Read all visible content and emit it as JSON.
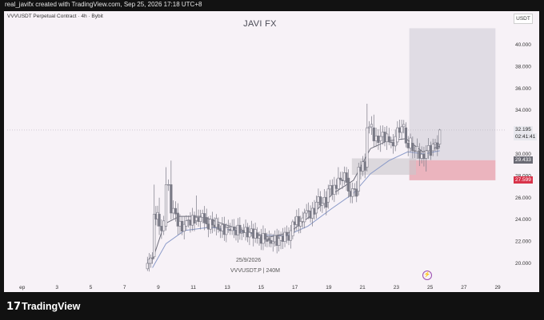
{
  "header": {
    "attribution": "real_javifx created with TradingView.com, Sep 25, 2026 17:18 UTC+8"
  },
  "chart": {
    "symbol_line": "VVVUSDT Perpetual Contract · 4h · Bybit",
    "watermark": "JAVI FX",
    "unit": "USDT",
    "date_note": "25/9/2026",
    "pair_note": "VVVUSDT.P | 240M"
  },
  "price_labels": {
    "last": "32.195",
    "countdown": "02:41:41",
    "entry": "29.433",
    "stop": "27.599",
    "last_color": "#e8e8ee",
    "entry_color": "#6b6b75",
    "stop_color": "#d8334a"
  },
  "brand": {
    "logo_glyph": "17",
    "name": "TradingView"
  },
  "chart_data": {
    "type": "candlestick",
    "title": "JAVI FX",
    "x_ticks": [
      "ep",
      "3",
      "5",
      "7",
      "9",
      "11",
      "13",
      "15",
      "17",
      "19",
      "21",
      "23",
      "25",
      "27",
      "29"
    ],
    "x_range": [
      0,
      29.5
    ],
    "y_ticks": [
      "40.000",
      "38.000",
      "36.000",
      "34.000",
      "30.000",
      "28.000",
      "26.000",
      "24.000",
      "22.000",
      "20.000"
    ],
    "ylim": [
      19.0,
      41.5
    ],
    "grid": false,
    "ohlc_sample": [
      {
        "t": 8.3,
        "o": 19.5,
        "h": 20.6,
        "l": 19.3,
        "c": 20.0
      },
      {
        "t": 8.5,
        "o": 20.0,
        "h": 20.8,
        "l": 19.6,
        "c": 20.5
      },
      {
        "t": 8.7,
        "o": 20.6,
        "h": 27.2,
        "l": 20.4,
        "c": 24.5
      },
      {
        "t": 9.0,
        "o": 24.5,
        "h": 26.0,
        "l": 22.6,
        "c": 23.4
      },
      {
        "t": 9.4,
        "o": 23.4,
        "h": 28.8,
        "l": 23.0,
        "c": 27.2
      },
      {
        "t": 9.7,
        "o": 27.2,
        "h": 29.4,
        "l": 24.0,
        "c": 24.6
      },
      {
        "t": 10.1,
        "o": 24.6,
        "h": 25.5,
        "l": 22.6,
        "c": 23.4
      },
      {
        "t": 10.6,
        "o": 23.4,
        "h": 24.4,
        "l": 23.0,
        "c": 23.9
      },
      {
        "t": 11.2,
        "o": 23.9,
        "h": 26.2,
        "l": 23.5,
        "c": 24.2
      },
      {
        "t": 11.8,
        "o": 24.2,
        "h": 25.0,
        "l": 23.2,
        "c": 23.6
      },
      {
        "t": 12.5,
        "o": 23.6,
        "h": 24.2,
        "l": 22.8,
        "c": 23.1
      },
      {
        "t": 13.2,
        "o": 23.1,
        "h": 23.7,
        "l": 22.6,
        "c": 23.0
      },
      {
        "t": 14.0,
        "o": 23.0,
        "h": 23.6,
        "l": 22.4,
        "c": 22.8
      },
      {
        "t": 14.8,
        "o": 22.8,
        "h": 23.3,
        "l": 21.8,
        "c": 22.3
      },
      {
        "t": 15.5,
        "o": 22.3,
        "h": 23.0,
        "l": 21.5,
        "c": 22.1
      },
      {
        "t": 16.2,
        "o": 22.1,
        "h": 22.9,
        "l": 21.3,
        "c": 22.5
      },
      {
        "t": 16.9,
        "o": 22.5,
        "h": 24.0,
        "l": 22.2,
        "c": 23.8
      },
      {
        "t": 17.6,
        "o": 23.8,
        "h": 25.0,
        "l": 23.2,
        "c": 24.6
      },
      {
        "t": 18.3,
        "o": 24.6,
        "h": 26.2,
        "l": 24.1,
        "c": 25.6
      },
      {
        "t": 19.0,
        "o": 25.6,
        "h": 27.2,
        "l": 25.0,
        "c": 26.8
      },
      {
        "t": 19.6,
        "o": 26.8,
        "h": 28.8,
        "l": 26.3,
        "c": 27.8
      },
      {
        "t": 20.2,
        "o": 27.8,
        "h": 28.6,
        "l": 26.0,
        "c": 26.6
      },
      {
        "t": 20.8,
        "o": 26.6,
        "h": 29.2,
        "l": 26.2,
        "c": 28.8
      },
      {
        "t": 21.3,
        "o": 28.8,
        "h": 34.6,
        "l": 28.4,
        "c": 32.4
      },
      {
        "t": 21.7,
        "o": 32.4,
        "h": 33.6,
        "l": 30.6,
        "c": 31.2
      },
      {
        "t": 22.1,
        "o": 31.2,
        "h": 32.6,
        "l": 30.2,
        "c": 31.6
      },
      {
        "t": 22.6,
        "o": 31.6,
        "h": 32.4,
        "l": 30.8,
        "c": 31.1
      },
      {
        "t": 23.1,
        "o": 31.1,
        "h": 33.0,
        "l": 30.8,
        "c": 32.4
      },
      {
        "t": 23.6,
        "o": 32.4,
        "h": 32.9,
        "l": 30.6,
        "c": 31.0
      },
      {
        "t": 24.0,
        "o": 31.0,
        "h": 31.6,
        "l": 29.6,
        "c": 30.3
      },
      {
        "t": 24.4,
        "o": 30.3,
        "h": 31.0,
        "l": 28.9,
        "c": 29.6
      },
      {
        "t": 24.8,
        "o": 29.6,
        "h": 30.8,
        "l": 28.4,
        "c": 30.3
      },
      {
        "t": 25.2,
        "o": 30.3,
        "h": 31.4,
        "l": 29.8,
        "c": 30.9
      },
      {
        "t": 25.6,
        "o": 30.9,
        "h": 32.3,
        "l": 30.5,
        "c": 32.2
      }
    ],
    "ema_fast": [
      [
        8.6,
        20.3
      ],
      [
        9.3,
        23.6
      ],
      [
        10.2,
        24.3
      ],
      [
        11.5,
        24.3
      ],
      [
        12.8,
        23.6
      ],
      [
        14.2,
        22.9
      ],
      [
        15.5,
        22.4
      ],
      [
        16.7,
        22.8
      ],
      [
        18.0,
        24.4
      ],
      [
        19.3,
        26.4
      ],
      [
        20.5,
        27.6
      ],
      [
        21.5,
        30.5
      ],
      [
        22.5,
        31.2
      ],
      [
        23.6,
        31.4
      ],
      [
        24.6,
        30.2
      ],
      [
        25.6,
        30.7
      ]
    ],
    "ema_slow": [
      [
        8.6,
        19.6
      ],
      [
        9.4,
        21.8
      ],
      [
        10.5,
        23.0
      ],
      [
        12.0,
        23.3
      ],
      [
        13.5,
        23.0
      ],
      [
        15.0,
        22.6
      ],
      [
        16.5,
        22.5
      ],
      [
        17.8,
        23.4
      ],
      [
        19.2,
        25.0
      ],
      [
        20.5,
        26.4
      ],
      [
        21.5,
        28.2
      ],
      [
        22.6,
        29.4
      ],
      [
        23.7,
        30.2
      ],
      [
        24.7,
        30.0
      ],
      [
        25.6,
        30.3
      ]
    ],
    "position": {
      "x_start": 23.8,
      "x_end": 28.9,
      "entry": 29.433,
      "stop": 27.599,
      "target": 41.5
    },
    "highlight_box": {
      "x_start": 20.4,
      "x_end": 24.2,
      "y_low": 28.1,
      "y_high": 29.6
    },
    "last_price": 32.195,
    "colors": {
      "candle": "#7a7a86",
      "ema_fast": "#6b6b78",
      "ema_slow": "#8a9ac8",
      "target_zone": "#dcd8e0",
      "stop_zone": "#e9a9b4"
    }
  }
}
